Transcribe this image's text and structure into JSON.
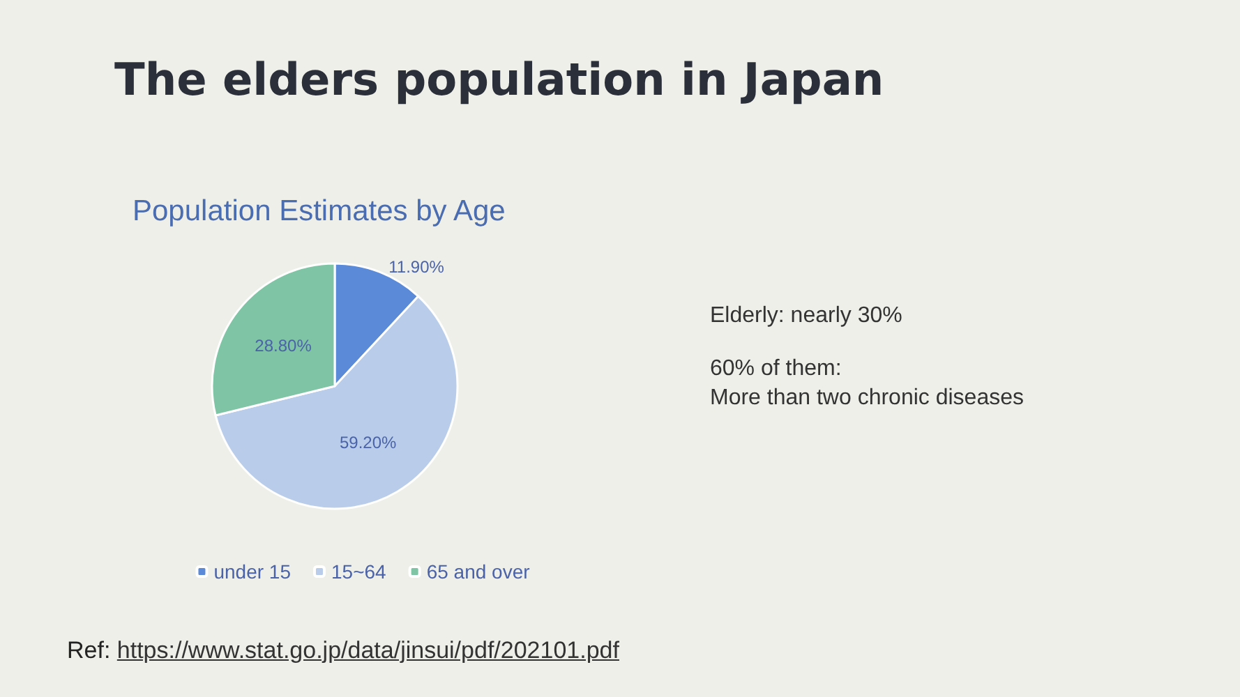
{
  "chart_data": {
    "type": "pie",
    "title": "The elders population in Japan",
    "subtitle": "Population Estimates by Age",
    "categories": [
      "under 15",
      "15~64",
      "65 and over"
    ],
    "values": [
      11.9,
      59.2,
      28.8
    ],
    "colors": [
      "#5b8ad8",
      "#b9cdeb",
      "#7fc4a4"
    ],
    "value_labels": [
      "11.90%",
      "59.20%",
      "28.80%"
    ],
    "legend": "bottom",
    "annotations": [
      "Elderly: nearly 30%",
      "60% of them:",
      "More than two chronic diseases",
      "Ref: https://www.stat.go.jp/data/jinsui/pdf/202101.pdf"
    ]
  }
}
